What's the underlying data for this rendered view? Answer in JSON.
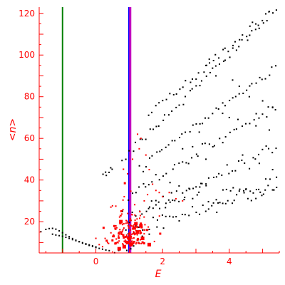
{
  "chart_data": {
    "type": "scatter",
    "title": "",
    "xlabel": "E",
    "ylabel": "<n>",
    "xlim": [
      -1.7,
      5.5
    ],
    "ylim": [
      5,
      123
    ],
    "x_ticks": [
      0,
      2,
      4
    ],
    "y_ticks": [
      20,
      40,
      60,
      80,
      100,
      120
    ],
    "x_minor_step": 0.5,
    "y_minor_step": 5,
    "grid": false,
    "legend": "none",
    "colors": {
      "axes": "#ff0000",
      "black_points": "#000000",
      "red_points": "#ff0000",
      "green_line": "#008000",
      "blue_line": "#0000ff",
      "magenta_line": "#c000c0"
    },
    "vertical_lines": [
      {
        "x": -1.0,
        "color": "#008000"
      },
      {
        "x": 1.0,
        "color": "#0000ff"
      },
      {
        "x": 1.03,
        "color": "#c000c0"
      }
    ],
    "black_series": {
      "edge_curve": [
        [
          -1.65,
          15.2
        ],
        [
          -1.5,
          16.3
        ],
        [
          -1.4,
          16.7
        ],
        [
          -1.3,
          16.8
        ],
        [
          -1.2,
          16.4
        ],
        [
          -1.1,
          15.6
        ],
        [
          -1.0,
          14.7
        ],
        [
          -0.9,
          13.7
        ],
        [
          -0.8,
          12.8
        ],
        [
          -0.7,
          11.9
        ],
        [
          -0.6,
          11.1
        ],
        [
          -0.5,
          10.4
        ],
        [
          -0.4,
          9.7
        ],
        [
          -0.3,
          9.1
        ],
        [
          -0.2,
          8.6
        ],
        [
          -0.1,
          8.1
        ],
        [
          0.0,
          7.6
        ],
        [
          0.1,
          7.2
        ],
        [
          0.2,
          6.8
        ],
        [
          0.3,
          6.4
        ],
        [
          0.4,
          6.1
        ]
      ],
      "lower_curve": [
        [
          -1.3,
          14.0
        ],
        [
          -1.2,
          13.6
        ],
        [
          -1.1,
          13.3
        ],
        [
          -1.0,
          13.0
        ],
        [
          -0.9,
          12.5
        ],
        [
          -0.8,
          12.0
        ],
        [
          -0.7,
          11.4
        ],
        [
          -0.6,
          10.9
        ],
        [
          -0.5,
          10.4
        ],
        [
          -0.4,
          9.9
        ],
        [
          -0.3,
          9.4
        ],
        [
          -0.2,
          8.9
        ],
        [
          -0.1,
          8.4
        ],
        [
          0.0,
          7.9
        ]
      ],
      "branches": [
        {
          "slope": 7.5,
          "intercept": 0.6,
          "x0": 0.2,
          "x1": 1.3,
          "step": 0.12,
          "jitter": 1.2
        },
        {
          "slope": 14.0,
          "intercept": 2.5,
          "x0": -0.9,
          "x1": 0.2,
          "step": 0.06,
          "jitter": 0.8
        },
        {
          "slope": 12.0,
          "intercept": 40.0,
          "x0": 0.2,
          "x1": 0.55,
          "step": 0.06,
          "jitter": 1.0
        },
        {
          "slope": 15.5,
          "intercept": 38.0,
          "x0": 0.8,
          "x1": 5.4,
          "step": 0.1,
          "jitter": 1.0
        },
        {
          "slope": 13.5,
          "intercept": 50.0,
          "x0": 1.6,
          "x1": 5.4,
          "step": 0.1,
          "jitter": 1.2
        },
        {
          "slope": 12.0,
          "intercept": 30.0,
          "x0": 1.3,
          "x1": 5.4,
          "step": 0.1,
          "jitter": 1.2
        },
        {
          "slope": 10.0,
          "intercept": 22.0,
          "x0": 1.0,
          "x1": 5.4,
          "step": 0.1,
          "jitter": 1.5
        },
        {
          "slope": 8.0,
          "intercept": 13.0,
          "x0": 1.0,
          "x1": 5.4,
          "step": 0.1,
          "jitter": 1.5
        },
        {
          "slope": 5.0,
          "intercept": 10.0,
          "x0": 1.0,
          "x1": 5.4,
          "step": 0.1,
          "jitter": 2.0
        },
        {
          "slope": 3.0,
          "intercept": 22.0,
          "x0": 1.6,
          "x1": 5.4,
          "step": 0.1,
          "jitter": 3.0
        }
      ],
      "extra_points": [
        [
          3.4,
          98
        ],
        [
          3.3,
          95
        ],
        [
          3.6,
          90
        ],
        [
          4.1,
          88
        ],
        [
          4.3,
          85
        ],
        [
          4.6,
          80
        ],
        [
          5.0,
          78
        ],
        [
          5.3,
          75
        ],
        [
          3.8,
          72
        ],
        [
          4.0,
          70
        ],
        [
          4.8,
          66
        ],
        [
          5.2,
          64
        ],
        [
          3.1,
          63
        ],
        [
          2.6,
          55
        ],
        [
          2.9,
          56
        ],
        [
          3.3,
          50
        ],
        [
          4.4,
          52
        ],
        [
          4.9,
          48
        ],
        [
          5.3,
          45
        ],
        [
          1.2,
          18
        ],
        [
          1.4,
          16
        ],
        [
          1.6,
          14
        ],
        [
          0.9,
          16
        ],
        [
          0.8,
          25
        ]
      ]
    },
    "red_series": {
      "cluster_center": [
        1.0,
        15.0
      ],
      "cluster_spread": [
        0.55,
        10.0
      ],
      "cluster_count": 160,
      "tail": [
        [
          0.7,
          14
        ],
        [
          0.6,
          18
        ],
        [
          0.5,
          13
        ],
        [
          0.35,
          10
        ],
        [
          0.2,
          8
        ],
        [
          0.1,
          9
        ],
        [
          0.0,
          12
        ],
        [
          0.45,
          27
        ],
        [
          0.85,
          32
        ],
        [
          0.95,
          43
        ],
        [
          1.1,
          50
        ],
        [
          1.3,
          55
        ],
        [
          1.5,
          52
        ],
        [
          1.6,
          45
        ],
        [
          1.7,
          38
        ],
        [
          1.8,
          35
        ],
        [
          1.9,
          34
        ],
        [
          2.0,
          32
        ],
        [
          2.2,
          34
        ],
        [
          2.4,
          31
        ],
        [
          2.6,
          30
        ],
        [
          1.25,
          62
        ],
        [
          1.35,
          60
        ],
        [
          1.55,
          33
        ],
        [
          1.45,
          30
        ]
      ],
      "big_points": [
        [
          0.95,
          10
        ],
        [
          1.0,
          12
        ],
        [
          1.05,
          9
        ],
        [
          1.15,
          17
        ],
        [
          1.2,
          19
        ],
        [
          1.25,
          15
        ],
        [
          0.85,
          8
        ],
        [
          1.35,
          18
        ],
        [
          1.4,
          12
        ],
        [
          0.75,
          20
        ],
        [
          1.6,
          9
        ],
        [
          0.7,
          7
        ]
      ]
    }
  }
}
